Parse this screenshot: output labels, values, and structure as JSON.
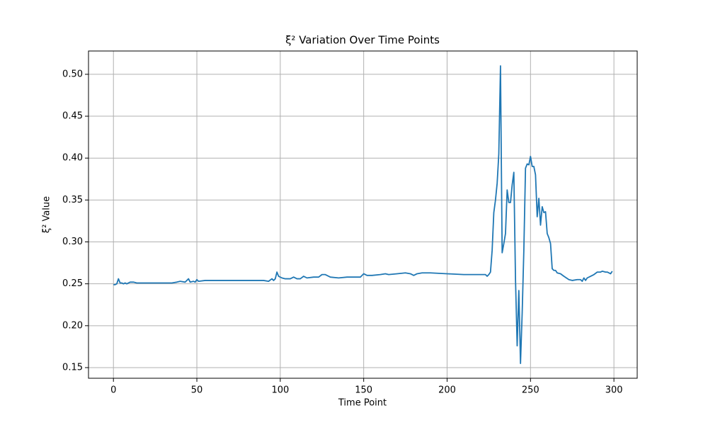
{
  "chart_data": {
    "type": "line",
    "title": "ξ² Variation Over Time Points",
    "x_label": "Time Point",
    "y_label": "ξ² Value",
    "color": "#1f77b4",
    "grid": true,
    "xlim": [
      -14.95,
      313.95
    ],
    "ylim": [
      0.1373,
      0.5278
    ],
    "xticks": [
      0,
      50,
      100,
      150,
      200,
      250,
      300
    ],
    "yticks": [
      0.15,
      {
        "value": 0.2,
        "label": "0.20"
      },
      0.25,
      {
        "value": 0.3,
        "label": "0.30"
      },
      0.35,
      {
        "value": 0.4,
        "label": "0.40"
      },
      0.45,
      {
        "value": 0.5,
        "label": "0.50"
      }
    ],
    "x": [
      0,
      1,
      2,
      3,
      4,
      5,
      6,
      7,
      8,
      10,
      12,
      14,
      20,
      30,
      35,
      38,
      40,
      43,
      45,
      46,
      48,
      49,
      50,
      51,
      55,
      60,
      70,
      80,
      90,
      93,
      95,
      96,
      97,
      98,
      99,
      101,
      103,
      106,
      108,
      110,
      112,
      114,
      116,
      120,
      123,
      125,
      127,
      130,
      135,
      140,
      145,
      148,
      150,
      152,
      155,
      160,
      163,
      165,
      170,
      175,
      178,
      180,
      182,
      185,
      190,
      200,
      210,
      220,
      223,
      224,
      225,
      226,
      227,
      228,
      229,
      230,
      231,
      232,
      233,
      234,
      235,
      236,
      237,
      238,
      239,
      240,
      241,
      242,
      243,
      244,
      245,
      246,
      247,
      248,
      249,
      250,
      251,
      252,
      253,
      254,
      255,
      256,
      257,
      258,
      259,
      260,
      261,
      262,
      263,
      264,
      265,
      266,
      268,
      270,
      273,
      275,
      278,
      280,
      281,
      282,
      283,
      284,
      286,
      288,
      290,
      292,
      293,
      295,
      296,
      298,
      299
    ],
    "values": [
      0.249,
      0.249,
      0.25,
      0.256,
      0.251,
      0.251,
      0.25,
      0.251,
      0.25,
      0.252,
      0.252,
      0.251,
      0.251,
      0.251,
      0.251,
      0.252,
      0.253,
      0.252,
      0.256,
      0.252,
      0.253,
      0.252,
      0.255,
      0.253,
      0.254,
      0.254,
      0.254,
      0.254,
      0.254,
      0.253,
      0.256,
      0.254,
      0.256,
      0.264,
      0.259,
      0.257,
      0.256,
      0.256,
      0.258,
      0.256,
      0.256,
      0.259,
      0.257,
      0.258,
      0.258,
      0.261,
      0.261,
      0.258,
      0.257,
      0.258,
      0.258,
      0.258,
      0.262,
      0.26,
      0.26,
      0.261,
      0.262,
      0.261,
      0.262,
      0.263,
      0.262,
      0.26,
      0.262,
      0.263,
      0.263,
      0.262,
      0.261,
      0.261,
      0.261,
      0.259,
      0.261,
      0.264,
      0.29,
      0.335,
      0.35,
      0.37,
      0.405,
      0.51,
      0.287,
      0.298,
      0.31,
      0.362,
      0.347,
      0.347,
      0.368,
      0.383,
      0.255,
      0.176,
      0.242,
      0.155,
      0.215,
      0.29,
      0.388,
      0.393,
      0.392,
      0.402,
      0.39,
      0.39,
      0.38,
      0.33,
      0.352,
      0.32,
      0.342,
      0.335,
      0.336,
      0.31,
      0.305,
      0.298,
      0.268,
      0.266,
      0.266,
      0.263,
      0.262,
      0.259,
      0.255,
      0.254,
      0.255,
      0.255,
      0.253,
      0.257,
      0.254,
      0.257,
      0.259,
      0.261,
      0.264,
      0.264,
      0.265,
      0.264,
      0.264,
      0.262,
      0.265
    ]
  }
}
